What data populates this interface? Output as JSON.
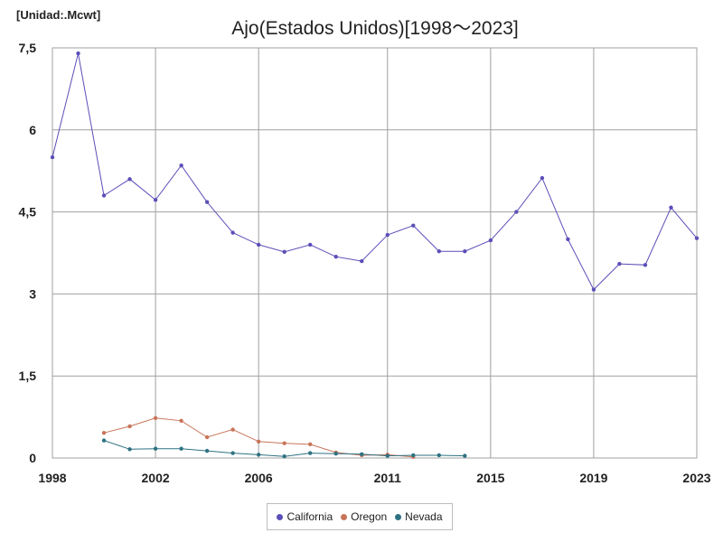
{
  "unit_label": "[Unidad:.Mcwt]",
  "chart_data": {
    "type": "line",
    "title": "Ajo(Estados Unidos)[1998～2023]",
    "xlabel": "",
    "ylabel": "",
    "x_range": [
      1998,
      2023
    ],
    "ylim": [
      0,
      7.5
    ],
    "x_ticks": [
      "1998",
      "2002",
      "2006",
      "2011",
      "2015",
      "2019",
      "2023"
    ],
    "y_ticks": [
      "0",
      "1,5",
      "3",
      "4,5",
      "6",
      "7,5"
    ],
    "grid": true,
    "legend_position": "bottom",
    "series": [
      {
        "name": "California",
        "color": "#5b4fb8",
        "x": [
          1998,
          1999,
          2000,
          2001,
          2002,
          2003,
          2004,
          2005,
          2006,
          2007,
          2008,
          2009,
          2010,
          2011,
          2012,
          2013,
          2014,
          2015,
          2016,
          2017,
          2018,
          2019,
          2020,
          2021,
          2022,
          2023
        ],
        "values": [
          5.5,
          7.4,
          4.8,
          5.1,
          4.72,
          5.35,
          4.68,
          4.12,
          3.9,
          3.77,
          3.9,
          3.68,
          3.6,
          4.08,
          4.25,
          3.78,
          3.78,
          3.98,
          4.5,
          5.12,
          4.0,
          3.08,
          3.55,
          3.53,
          4.58,
          4.02
        ]
      },
      {
        "name": "Oregon",
        "color": "#c8745a",
        "x": [
          2000,
          2001,
          2002,
          2003,
          2004,
          2005,
          2006,
          2007,
          2008,
          2009,
          2010,
          2011,
          2012
        ],
        "values": [
          0.46,
          0.58,
          0.73,
          0.68,
          0.38,
          0.52,
          0.3,
          0.27,
          0.25,
          0.1,
          0.05,
          0.06,
          0.02
        ]
      },
      {
        "name": "Nevada",
        "color": "#2e7282",
        "x": [
          2000,
          2001,
          2002,
          2003,
          2004,
          2005,
          2006,
          2007,
          2008,
          2009,
          2010,
          2011,
          2012,
          2013,
          2014
        ],
        "values": [
          0.32,
          0.16,
          0.17,
          0.17,
          0.13,
          0.09,
          0.06,
          0.03,
          0.09,
          0.08,
          0.07,
          0.04,
          0.05,
          0.05,
          0.04
        ]
      }
    ]
  }
}
